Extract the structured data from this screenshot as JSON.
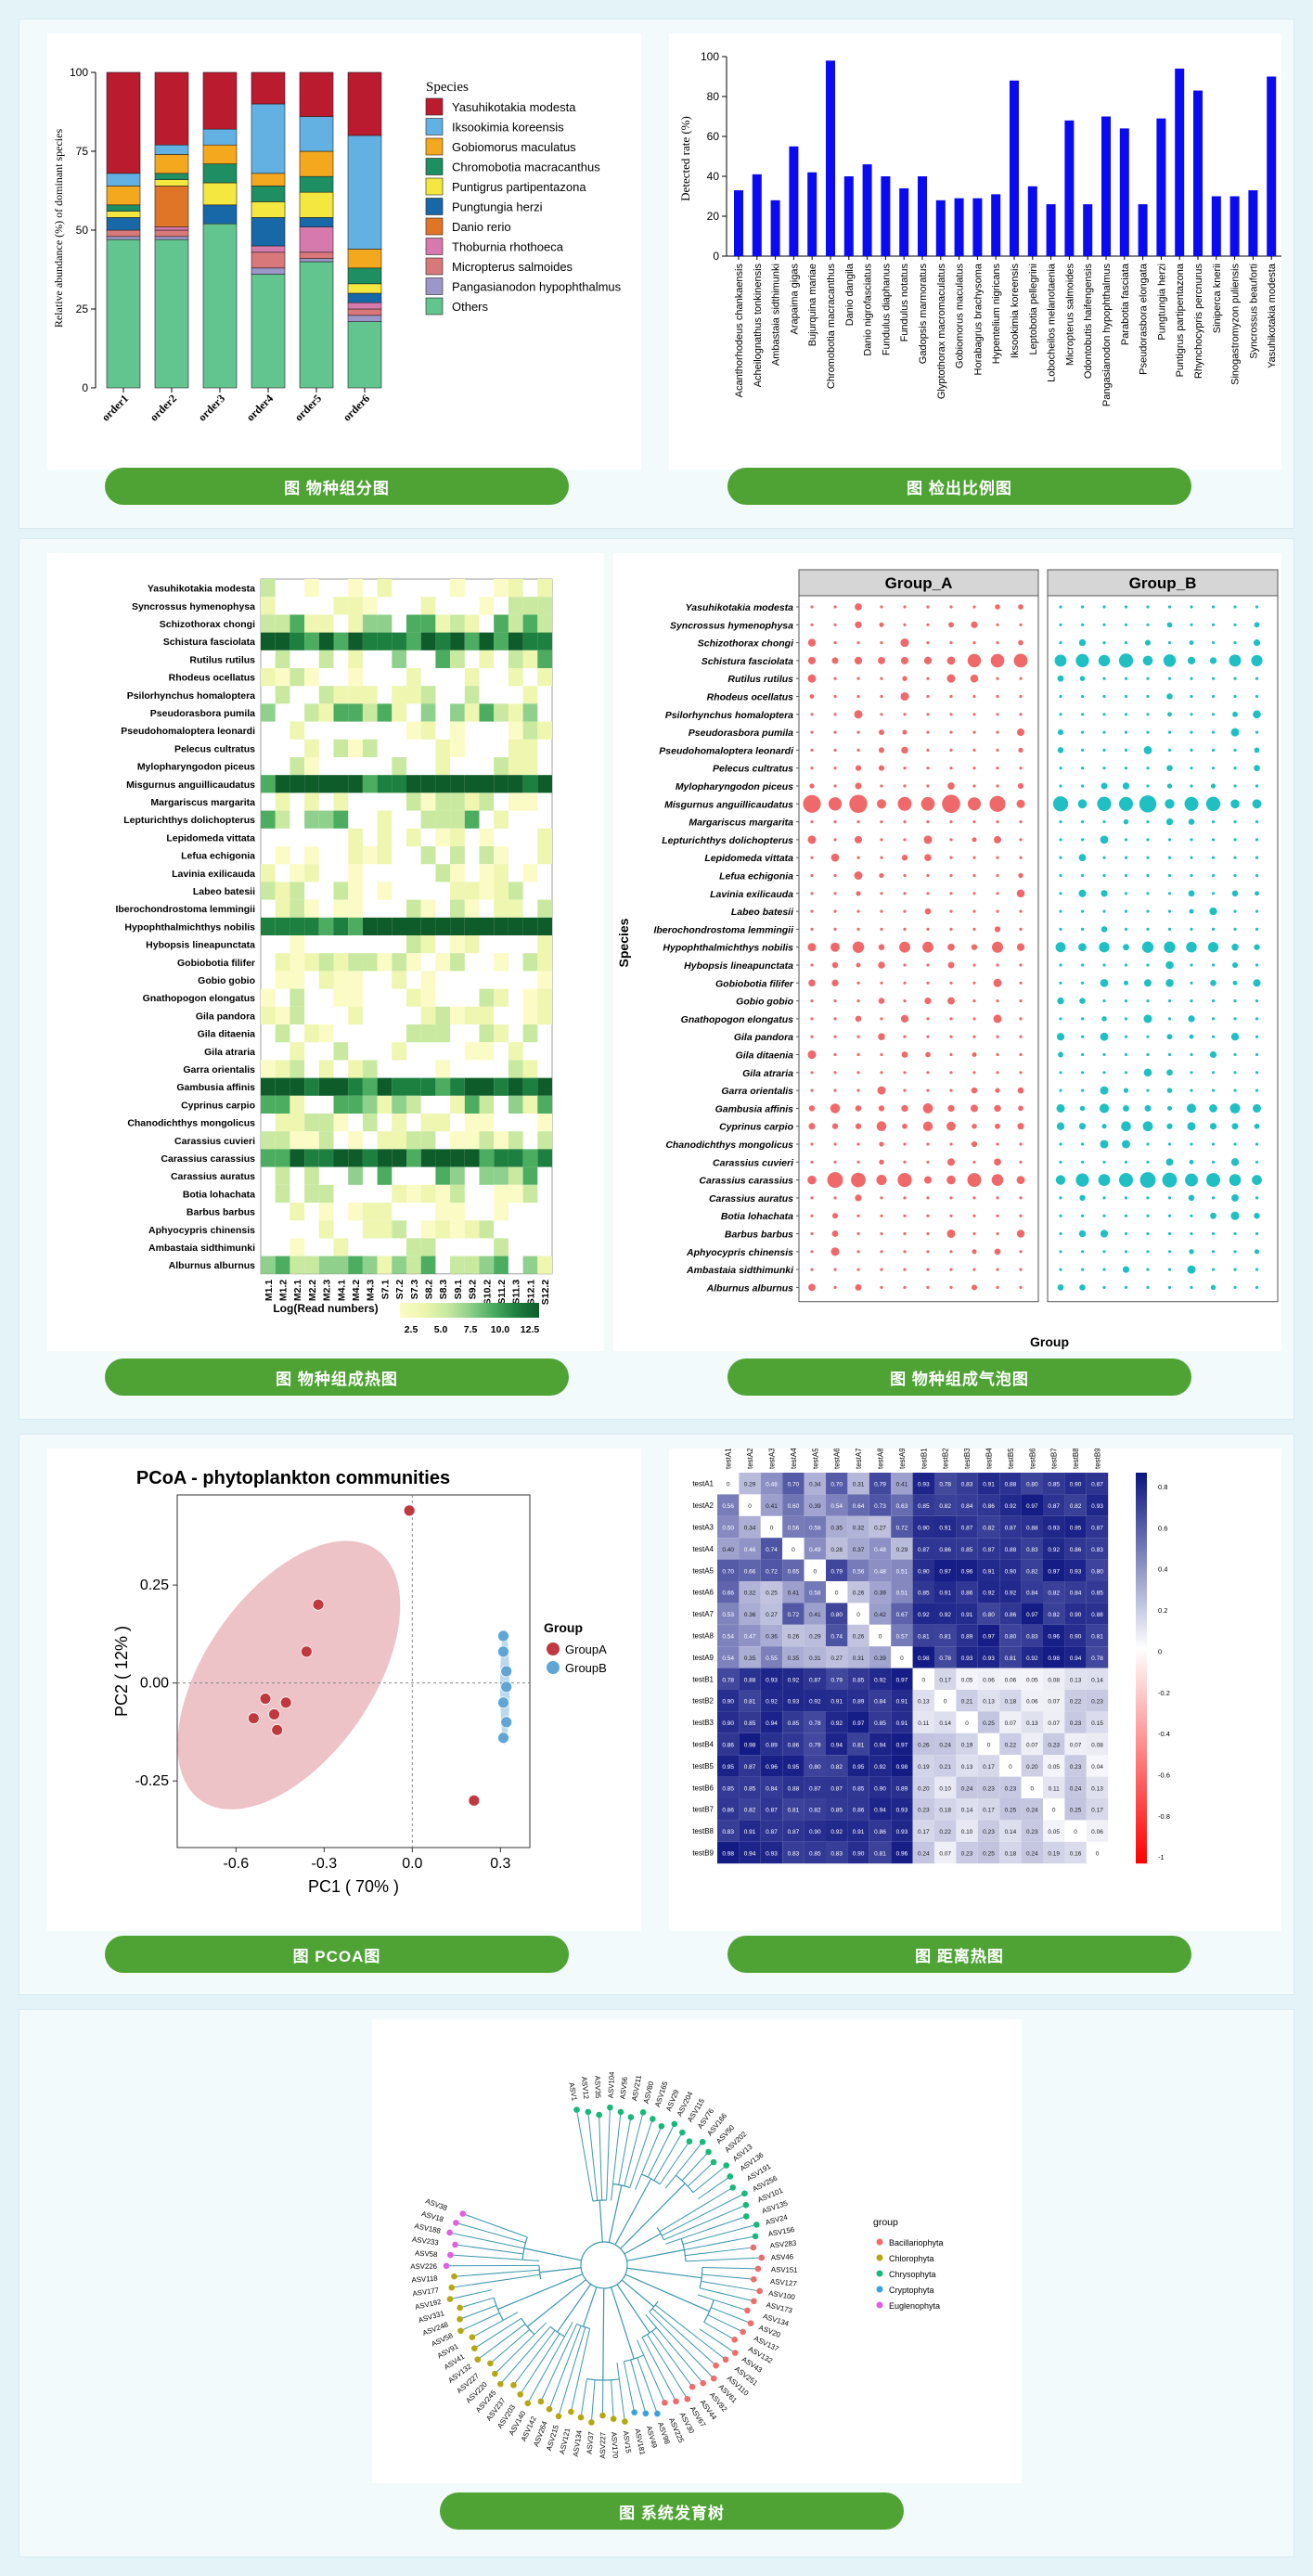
{
  "colors": {
    "page": "#e3f3f8",
    "button": "#4ea334"
  },
  "captions": {
    "stacked": "图 物种组分图",
    "detection": "图 检出比例图",
    "heatmap": "图 物种组成热图",
    "bubble": "图 物种组成气泡图",
    "pcoa": "图 PCOA图",
    "distance": "图 距离热图",
    "tree": "图 系统发育树"
  },
  "chart_data": [
    {
      "id": "stacked",
      "type": "bar",
      "stacked": true,
      "ylabel": "Relative abundance (%) of dominant species",
      "ylim": [
        0,
        100
      ],
      "yticks": [
        0,
        25,
        50,
        75,
        100
      ],
      "categories": [
        "order1",
        "order2",
        "order3",
        "order4",
        "order5",
        "order6"
      ],
      "legend_title": "Species",
      "series": [
        {
          "name": "Others",
          "color": "#62c48e",
          "values": [
            47,
            47,
            52,
            36,
            40,
            21
          ]
        },
        {
          "name": "Pangasianodon hypophthalmus",
          "color": "#9b97c9",
          "values": [
            1,
            1,
            0,
            2,
            1,
            2
          ]
        },
        {
          "name": "Micropterus salmoides",
          "color": "#d9787a",
          "values": [
            2,
            2,
            0,
            5,
            2,
            2
          ]
        },
        {
          "name": "Thoburnia rhothoeca",
          "color": "#d679ad",
          "values": [
            0,
            1,
            0,
            2,
            8,
            2
          ]
        },
        {
          "name": "Danio rerio",
          "color": "#e07527",
          "values": [
            0,
            13,
            0,
            0,
            0,
            0
          ]
        },
        {
          "name": "Pungtungia herzi",
          "color": "#1868a8",
          "values": [
            4,
            0,
            6,
            9,
            3,
            3
          ]
        },
        {
          "name": "Puntigrus partipentazona",
          "color": "#f4e840",
          "values": [
            2,
            2,
            7,
            5,
            8,
            3
          ]
        },
        {
          "name": "Chromobotia macracanthus",
          "color": "#1e8e63",
          "values": [
            2,
            2,
            6,
            5,
            5,
            5
          ]
        },
        {
          "name": "Gobiomorus maculatus",
          "color": "#f4a81d",
          "values": [
            6,
            6,
            6,
            4,
            8,
            6
          ]
        },
        {
          "name": "Iksookimia koreensis",
          "color": "#63b0e3",
          "values": [
            4,
            3,
            5,
            22,
            11,
            36
          ]
        },
        {
          "name": "Yasuhikotakia modesta",
          "color": "#bb1b2e",
          "values": [
            32,
            23,
            18,
            10,
            14,
            20
          ]
        }
      ]
    },
    {
      "id": "detection",
      "type": "bar",
      "ylabel": "Detected rate (%)",
      "ylim": [
        0,
        100
      ],
      "yticks": [
        0,
        20,
        40,
        60,
        80,
        100
      ],
      "color": "#0b0bf2",
      "categories": [
        "Acanthorhodeus chankaensis",
        "Acheilognathus tonkinensis",
        "Ambastaia sidthimunki",
        "Arapaima gigas",
        "Bujurquina mariae",
        "Chromobotia macracanthus",
        "Danio dangila",
        "Danio nigrofasciatus",
        "Fundulus diaphanus",
        "Fundulus notatus",
        "Gadopsis marmoratus",
        "Glyptothorax macromaculatus",
        "Gobiomorus maculatus",
        "Horabagrus brachysoma",
        "Hypentelium nigricans",
        "Iksookimia koreensis",
        "Leptobotia pellegrini",
        "Lobocheilos melanotaenia",
        "Micropterus salmoides",
        "Odontobutis haifengensis",
        "Pangasianodon hypophthalmus",
        "Parabotia fasciata",
        "Pseudorasbora elongata",
        "Pungtungia herzi",
        "Puntigrus partipentazona",
        "Rhynchocypris percnurus",
        "Siniperca knerii",
        "Sinogastromyzon puliensis",
        "Syncrossus beauforti",
        "Yasuhikotakia modesta"
      ],
      "values": [
        33,
        41,
        28,
        55,
        42,
        98,
        40,
        46,
        40,
        34,
        40,
        28,
        29,
        29,
        31,
        88,
        35,
        26,
        68,
        26,
        70,
        64,
        26,
        69,
        94,
        83,
        30,
        30,
        33,
        90
      ]
    },
    {
      "id": "heatmap",
      "type": "heatmap",
      "legend_title": "Log(Read numbers)",
      "legend_ticks": [
        "2.5",
        "5.0",
        "7.5",
        "10.0",
        "12.5"
      ],
      "columns": [
        "M1.1",
        "M1.2",
        "M2.1",
        "M2.2",
        "M2.3",
        "M4.1",
        "M4.2",
        "M4.3",
        "S7.1",
        "S7.2",
        "S7.3",
        "S8.2",
        "S8.3",
        "S9.1",
        "S9.2",
        "S10.2",
        "S11.2",
        "S11.3",
        "S12.1",
        "S12.2"
      ],
      "rows": [
        "Yasuhikotakia modesta",
        "Syncrossus hymenophysa",
        "Schizothorax chongi",
        "Schistura fasciolata",
        "Rutilus rutilus",
        "Rhodeus ocellatus",
        "Psilorhynchus homaloptera",
        "Pseudorasbora pumila",
        "Pseudohomaloptera leonardi",
        "Pelecus cultratus",
        "Mylopharyngodon piceus",
        "Misgurnus anguillicaudatus",
        "Margariscus margarita",
        "Lepturichthys dolichopterus",
        "Lepidomeda vittata",
        "Lefua echigonia",
        "Lavinia exilicauda",
        "Labeo batesii",
        "Iberochondrostoma lemmingii",
        "Hypophthalmichthys nobilis",
        "Hybopsis lineapunctata",
        "Gobiobotia filifer",
        "Gobio gobio",
        "Gnathopogon elongatus",
        "Gila pandora",
        "Gila ditaenia",
        "Gila atraria",
        "Garra orientalis",
        "Gambusia affinis",
        "Cyprinus carpio",
        "Chanodichthys mongolicus",
        "Carassius cuvieri",
        "Carassius carassius",
        "Carassius auratus",
        "Botia lohachata",
        "Barbus barbus",
        "Aphyocypris chinensis",
        "Ambastaia sidthimunki",
        "Alburnus alburnus"
      ]
    },
    {
      "id": "bubble",
      "type": "scatter",
      "xlabel": "Group",
      "ylabel": "Species",
      "groups": [
        {
          "name": "Group_A",
          "color": "#f0696a"
        },
        {
          "name": "Group_B",
          "color": "#1fbfc4"
        }
      ],
      "rows": [
        "Yasuhikotakia modesta",
        "Syncrossus hymenophysa",
        "Schizothorax chongi",
        "Schistura fasciolata",
        "Rutilus rutilus",
        "Rhodeus ocellatus",
        "Psilorhynchus homaloptera",
        "Pseudorasbora pumila",
        "Pseudohomaloptera leonardi",
        "Pelecus cultratus",
        "Mylopharyngodon piceus",
        "Misgurnus anguillicaudatus",
        "Margariscus margarita",
        "Lepturichthys dolichopterus",
        "Lepidomeda vittata",
        "Lefua echigonia",
        "Lavinia exilicauda",
        "Labeo batesii",
        "Iberochondrostoma lemmingii",
        "Hypophthalmichthys nobilis",
        "Hybopsis lineapunctata",
        "Gobiobotia filifer",
        "Gobio gobio",
        "Gnathopogon elongatus",
        "Gila pandora",
        "Gila ditaenia",
        "Gila atraria",
        "Garra orientalis",
        "Gambusia affinis",
        "Cyprinus carpio",
        "Chanodichthys mongolicus",
        "Carassius cuvieri",
        "Carassius carassius",
        "Carassius auratus",
        "Botia lohachata",
        "Barbus barbus",
        "Aphyocypris chinensis",
        "Ambastaia sidthimunki",
        "Alburnus alburnus"
      ]
    },
    {
      "id": "pcoa",
      "type": "scatter",
      "title": "PCoA - phytoplankton communities",
      "xlabel": "PC1 ( 70% )",
      "ylabel": "PC2 ( 12% )",
      "xticks": [
        "-0.6",
        "-0.3",
        "0.0",
        "0.3"
      ],
      "yticks": [
        "0.25",
        "0.00",
        "-0.25"
      ],
      "legend_title": "Group",
      "series": [
        {
          "name": "GroupA",
          "color": "#c0393f",
          "x": [
            -0.5,
            -0.47,
            -0.43,
            -0.36,
            -0.32,
            -0.54,
            -0.46,
            -0.01,
            0.21
          ],
          "y": [
            -0.04,
            -0.08,
            -0.05,
            0.08,
            0.2,
            -0.09,
            -0.12,
            0.44,
            -0.3
          ]
        },
        {
          "name": "GroupB",
          "color": "#5fa6d6",
          "x": [
            0.31,
            0.31,
            0.32,
            0.32,
            0.31,
            0.32,
            0.31
          ],
          "y": [
            0.12,
            0.08,
            0.03,
            -0.01,
            -0.05,
            -0.1,
            -0.14
          ]
        }
      ],
      "xlim": [
        -0.8,
        0.4
      ],
      "ylim": [
        -0.42,
        0.48
      ]
    },
    {
      "id": "distance",
      "type": "heatmap",
      "labels": [
        "testA1",
        "testA2",
        "testA3",
        "testA4",
        "testA5",
        "testA6",
        "testA7",
        "testA8",
        "testA9",
        "testB1",
        "testB2",
        "testB3",
        "testB4",
        "testB5",
        "testB6",
        "testB7",
        "testB8",
        "testB9"
      ],
      "colorbar_ticks": [
        "0.8",
        "0.6",
        "0.4",
        "0.2",
        "0",
        "-0.2",
        "-0.4",
        "-0.6",
        "-0.8",
        "-1"
      ]
    },
    {
      "id": "tree",
      "type": "tree",
      "legend_title": "group",
      "groups": [
        {
          "name": "Bacillariophyta",
          "color": "#f26b6b"
        },
        {
          "name": "Chlorophyta",
          "color": "#b5a712"
        },
        {
          "name": "Chrysophyta",
          "color": "#17b87a"
        },
        {
          "name": "Cryptophyta",
          "color": "#3b9fe0"
        },
        {
          "name": "Euglenophyta",
          "color": "#e060e0"
        }
      ],
      "tip_labels": [
        "ASV1",
        "ASV12",
        "ASV35",
        "ASV104",
        "ASV56",
        "ASV211",
        "ASV80",
        "ASV165",
        "ASV29",
        "ASV204",
        "ASV115",
        "ASV76",
        "ASV166",
        "ASV50",
        "ASV202",
        "ASV13",
        "ASV136",
        "ASV191",
        "ASV256",
        "ASV101",
        "ASV135",
        "ASV24",
        "ASV156",
        "ASV283",
        "ASV46",
        "ASV151",
        "ASV127",
        "ASV100",
        "ASV173",
        "ASV134",
        "ASV20",
        "ASV137",
        "ASV132",
        "ASV43",
        "ASV251",
        "ASV110",
        "ASV61",
        "ASV82",
        "ASV44",
        "ASV67",
        "ASV30",
        "ASV225",
        "ASV98",
        "ASV49",
        "ASV181",
        "ASV15",
        "ASV170",
        "ASV227",
        "ASV37",
        "ASV134",
        "ASV121",
        "ASV215",
        "ASV264",
        "ASV142",
        "ASV140",
        "ASV203",
        "ASV237",
        "ASV245",
        "ASV220",
        "ASV227",
        "ASV132",
        "ASV41",
        "ASV91",
        "ASV58",
        "ASV248",
        "ASV331",
        "ASV192",
        "ASV177",
        "ASV118",
        "ASV226",
        "ASV58",
        "ASV233",
        "ASV188",
        "ASV18",
        "ASV38"
      ]
    }
  ]
}
